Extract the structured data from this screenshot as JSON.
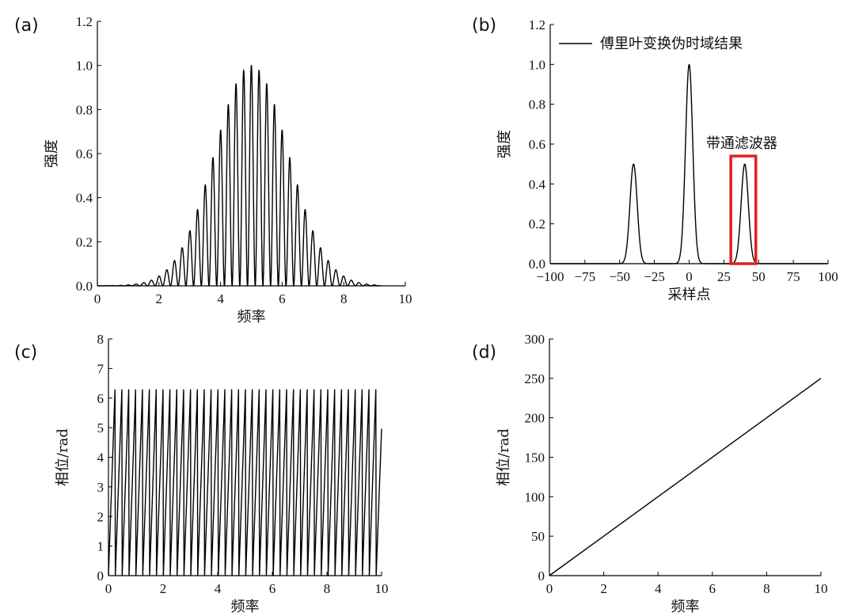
{
  "panels": [
    {
      "label": "(a)"
    },
    {
      "label": "(b)"
    },
    {
      "label": "(c)"
    },
    {
      "label": "(d)"
    }
  ],
  "chart_data": [
    {
      "id": "a",
      "type": "line",
      "description_series": "Gaussian-modulated interference fringe spectrum",
      "xlabel": "频率",
      "ylabel": "强度",
      "xlim": [
        0,
        10
      ],
      "ylim": [
        0,
        1.2
      ],
      "xticks": [
        0,
        2,
        4,
        6,
        8,
        10
      ],
      "yticks": [
        0.0,
        0.2,
        0.4,
        0.6,
        0.8,
        1.0,
        1.2
      ],
      "ytick_labels": [
        "0.0",
        "0.2",
        "0.4",
        "0.6",
        "0.8",
        "1.0",
        "1.2"
      ],
      "model": {
        "center": 5,
        "sigma": 1.2,
        "fringe_period": 0.25,
        "x_range": [
          0.5,
          9.2
        ]
      }
    },
    {
      "id": "b",
      "type": "line",
      "xlabel": "采样点",
      "ylabel": "强度",
      "xlim": [
        -100,
        100
      ],
      "ylim": [
        0,
        1.2
      ],
      "xticks": [
        -100,
        -75,
        -50,
        -25,
        0,
        25,
        50,
        75,
        100
      ],
      "yticks": [
        0.0,
        0.2,
        0.4,
        0.6,
        0.8,
        1.0,
        1.2
      ],
      "ytick_labels": [
        "0.0",
        "0.2",
        "0.4",
        "0.6",
        "0.8",
        "1.0",
        "1.2"
      ],
      "legend": "傅里叶变换伪时域结果",
      "peaks": [
        {
          "x": -40,
          "height": 0.5
        },
        {
          "x": 0,
          "height": 1.0
        },
        {
          "x": 40,
          "height": 0.5
        }
      ],
      "peak_width": 2.6,
      "annotation": {
        "text": "带通滤波器",
        "x_range": [
          30,
          48
        ],
        "y_range": [
          0,
          0.54
        ],
        "color": "#e02020"
      }
    },
    {
      "id": "c",
      "type": "line",
      "xlabel": "频率",
      "ylabel": "相位/rad",
      "xlim": [
        0,
        10
      ],
      "ylim": [
        0,
        8
      ],
      "xticks": [
        0,
        2,
        4,
        6,
        8,
        10
      ],
      "yticks": [
        0,
        1,
        2,
        3,
        4,
        5,
        6,
        7,
        8
      ],
      "model": {
        "slope": 25,
        "wrap": 6.283,
        "x_range": [
          0,
          10
        ]
      }
    },
    {
      "id": "d",
      "type": "line",
      "xlabel": "频率",
      "ylabel": "相位/rad",
      "xlim": [
        0,
        10
      ],
      "ylim": [
        0,
        300
      ],
      "xticks": [
        0,
        2,
        4,
        6,
        8,
        10
      ],
      "yticks": [
        0,
        50,
        100,
        150,
        200,
        250,
        300
      ],
      "series": [
        {
          "name": "unwrapped phase",
          "x": [
            0,
            10
          ],
          "y": [
            0,
            250
          ]
        }
      ]
    }
  ]
}
